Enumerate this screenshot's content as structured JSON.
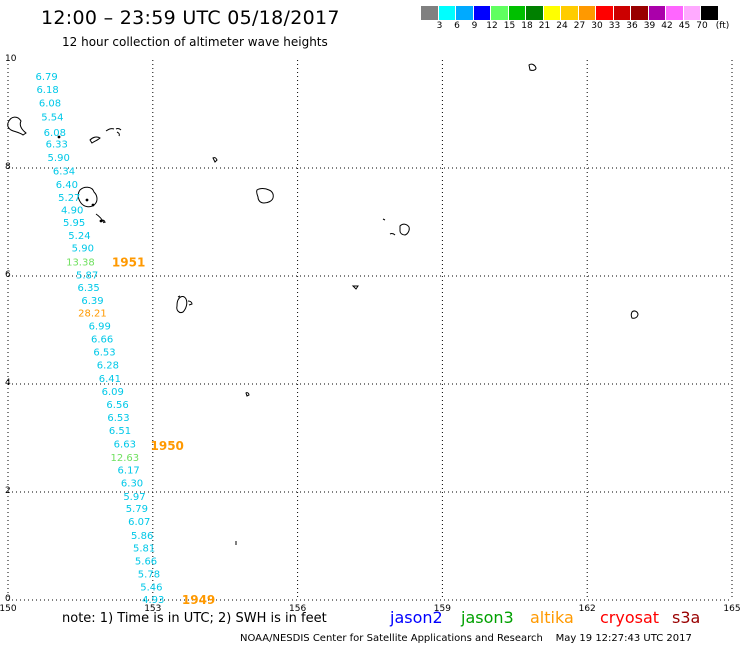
{
  "header": {
    "title": "12:00 – 23:59 UTC 05/18/2017",
    "subtitle": "12 hour collection of altimeter wave heights"
  },
  "colorbar": {
    "colors": [
      "#808080",
      "#00ffff",
      "#00aaff",
      "#0000ff",
      "#60ff60",
      "#00c000",
      "#008000",
      "#ffff00",
      "#ffcc00",
      "#ff9900",
      "#ff0000",
      "#cc0000",
      "#990000",
      "#aa00aa",
      "#ff66ff",
      "#ffaaff",
      "#000000"
    ],
    "labels": [
      "3",
      "6",
      "9",
      "12",
      "15",
      "18",
      "21",
      "24",
      "27",
      "30",
      "33",
      "36",
      "39",
      "42",
      "45",
      "70",
      "(ft)"
    ]
  },
  "axes": {
    "x_ticks": [
      "150",
      "153",
      "156",
      "159",
      "162",
      "165"
    ],
    "y_ticks": [
      "10",
      "8",
      "6",
      "4",
      "2",
      "0"
    ]
  },
  "track": {
    "swh_values": [
      {
        "text": "6.79",
        "x": 150.8,
        "y": 9.7,
        "color": "#00c8e8"
      },
      {
        "text": "6.18",
        "x": 150.82,
        "y": 9.46,
        "color": "#00c8e8"
      },
      {
        "text": "6.08",
        "x": 150.87,
        "y": 9.21,
        "color": "#00c8e8"
      },
      {
        "text": "5.54",
        "x": 150.92,
        "y": 8.95,
        "color": "#00c8e8"
      },
      {
        "text": "6.08",
        "x": 150.97,
        "y": 8.67,
        "color": "#00c8e8"
      },
      {
        "text": "6.33",
        "x": 151.01,
        "y": 8.45,
        "color": "#00c8e8"
      },
      {
        "text": "5.90",
        "x": 151.05,
        "y": 8.2,
        "color": "#00c8e8"
      },
      {
        "text": "6.34",
        "x": 151.16,
        "y": 7.95,
        "color": "#00c8e8"
      },
      {
        "text": "6.40",
        "x": 151.22,
        "y": 7.7,
        "color": "#00c8e8"
      },
      {
        "text": "5.27",
        "x": 151.27,
        "y": 7.46,
        "color": "#00c8e8"
      },
      {
        "text": "4.90",
        "x": 151.33,
        "y": 7.23,
        "color": "#00c8e8"
      },
      {
        "text": "5.95",
        "x": 151.37,
        "y": 7.0,
        "color": "#00c8e8"
      },
      {
        "text": "5.24",
        "x": 151.48,
        "y": 6.76,
        "color": "#00c8e8"
      },
      {
        "text": "5.90",
        "x": 151.55,
        "y": 6.53,
        "color": "#00c8e8"
      },
      {
        "text": "13.38",
        "x": 151.5,
        "y": 6.27,
        "color": "#70e060"
      },
      {
        "text": "5.87",
        "x": 151.64,
        "y": 6.03,
        "color": "#00c8e8"
      },
      {
        "text": "6.35",
        "x": 151.67,
        "y": 5.8,
        "color": "#00c8e8"
      },
      {
        "text": "6.39",
        "x": 151.75,
        "y": 5.56,
        "color": "#00c8e8"
      },
      {
        "text": "28.21",
        "x": 151.75,
        "y": 5.32,
        "color": "#ff9900"
      },
      {
        "text": "6.99",
        "x": 151.9,
        "y": 5.08,
        "color": "#00c8e8"
      },
      {
        "text": "6.66",
        "x": 151.95,
        "y": 4.84,
        "color": "#00c8e8"
      },
      {
        "text": "6.53",
        "x": 152.0,
        "y": 4.6,
        "color": "#00c8e8"
      },
      {
        "text": "6.28",
        "x": 152.07,
        "y": 4.36,
        "color": "#00c8e8"
      },
      {
        "text": "6.41",
        "x": 152.11,
        "y": 4.11,
        "color": "#00c8e8"
      },
      {
        "text": "6.09",
        "x": 152.17,
        "y": 3.87,
        "color": "#00c8e8"
      },
      {
        "text": "6.56",
        "x": 152.27,
        "y": 3.63,
        "color": "#00c8e8"
      },
      {
        "text": "6.53",
        "x": 152.29,
        "y": 3.39,
        "color": "#00c8e8"
      },
      {
        "text": "6.51",
        "x": 152.32,
        "y": 3.15,
        "color": "#00c8e8"
      },
      {
        "text": "6.63",
        "x": 152.42,
        "y": 2.9,
        "color": "#00c8e8"
      },
      {
        "text": "12.63",
        "x": 152.42,
        "y": 2.65,
        "color": "#70e060"
      },
      {
        "text": "6.17",
        "x": 152.5,
        "y": 2.42,
        "color": "#00c8e8"
      },
      {
        "text": "6.30",
        "x": 152.57,
        "y": 2.18,
        "color": "#00c8e8"
      },
      {
        "text": "5.97",
        "x": 152.62,
        "y": 1.93,
        "color": "#00c8e8"
      },
      {
        "text": "5.79",
        "x": 152.67,
        "y": 1.7,
        "color": "#00c8e8"
      },
      {
        "text": "6.07",
        "x": 152.72,
        "y": 1.46,
        "color": "#00c8e8"
      },
      {
        "text": "5.86",
        "x": 152.78,
        "y": 1.2,
        "color": "#00c8e8"
      },
      {
        "text": "5.81",
        "x": 152.82,
        "y": 0.97,
        "color": "#00c8e8"
      },
      {
        "text": "5.66",
        "x": 152.86,
        "y": 0.73,
        "color": "#00c8e8"
      },
      {
        "text": "5.78",
        "x": 152.92,
        "y": 0.49,
        "color": "#00c8e8"
      },
      {
        "text": "5.46",
        "x": 152.97,
        "y": 0.25,
        "color": "#00c8e8"
      },
      {
        "text": "4.93",
        "x": 153.01,
        "y": 0.02,
        "color": "#00c8e8"
      }
    ],
    "time_labels": [
      {
        "text": "1951",
        "x": 152.25,
        "y": 6.27,
        "color": "#ff9900"
      },
      {
        "text": "1950",
        "x": 153.05,
        "y": 2.87,
        "color": "#ff9900"
      },
      {
        "text": "1949",
        "x": 153.7,
        "y": 0.02,
        "color": "#ff9900"
      }
    ]
  },
  "footer": {
    "note": "note:  1) Time is in UTC;  2) SWH is in feet",
    "legend": [
      {
        "name": "jason2",
        "color": "#0000ff"
      },
      {
        "name": "jason3",
        "color": "#00a000"
      },
      {
        "name": "altika",
        "color": "#ff9900"
      },
      {
        "name": "cryosat",
        "color": "#ff0000"
      },
      {
        "name": "s3a",
        "color": "#990000"
      }
    ],
    "credit": "NOAA/NESDIS Center for Satellite Applications and Research    May 19 12:27:43 UTC 2017"
  }
}
